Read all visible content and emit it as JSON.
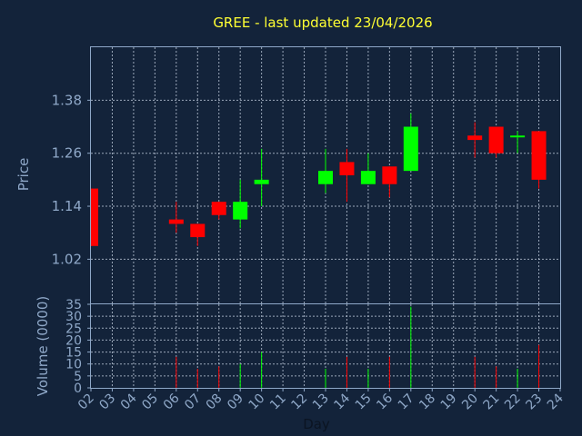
{
  "chart_data": [
    {
      "type": "candlestick",
      "title": "GREE - last updated 23/04/2026",
      "ylabel": "Price",
      "xlabel": "Day",
      "ylim": [
        0.92,
        1.5
      ],
      "yticks": [
        "1.02",
        "1.14",
        "1.26",
        "1.38"
      ],
      "ytick_values": [
        1.02,
        1.14,
        1.26,
        1.38
      ],
      "categories": [
        "02",
        "03",
        "04",
        "05",
        "06",
        "07",
        "08",
        "09",
        "10",
        "11",
        "12",
        "13",
        "14",
        "15",
        "16",
        "17",
        "18",
        "19",
        "20",
        "21",
        "22",
        "23",
        "24"
      ],
      "grid": true,
      "colors": {
        "up": "#00ff00",
        "down": "#ff0000",
        "title": "#ffff33",
        "axis": "#8fa8c8",
        "background": "#13233a"
      },
      "candles": [
        {
          "day": "02",
          "open": 1.18,
          "high": 1.18,
          "low": 1.05,
          "close": 1.05
        },
        {
          "day": "06",
          "open": 1.11,
          "high": 1.15,
          "low": 1.08,
          "close": 1.1
        },
        {
          "day": "07",
          "open": 1.1,
          "high": 1.1,
          "low": 1.05,
          "close": 1.07
        },
        {
          "day": "08",
          "open": 1.15,
          "high": 1.15,
          "low": 1.11,
          "close": 1.12
        },
        {
          "day": "09",
          "open": 1.11,
          "high": 1.2,
          "low": 1.09,
          "close": 1.15
        },
        {
          "day": "10",
          "open": 1.19,
          "high": 1.27,
          "low": 1.14,
          "close": 1.2
        },
        {
          "day": "13",
          "open": 1.19,
          "high": 1.27,
          "low": 1.17,
          "close": 1.22
        },
        {
          "day": "14",
          "open": 1.24,
          "high": 1.27,
          "low": 1.15,
          "close": 1.21
        },
        {
          "day": "15",
          "open": 1.19,
          "high": 1.26,
          "low": 1.19,
          "close": 1.22
        },
        {
          "day": "16",
          "open": 1.23,
          "high": 1.23,
          "low": 1.16,
          "close": 1.19
        },
        {
          "day": "17",
          "open": 1.22,
          "high": 1.35,
          "low": 1.22,
          "close": 1.32
        },
        {
          "day": "20",
          "open": 1.3,
          "high": 1.33,
          "low": 1.25,
          "close": 1.29
        },
        {
          "day": "21",
          "open": 1.32,
          "high": 1.32,
          "low": 1.25,
          "close": 1.26
        },
        {
          "day": "22",
          "open": 1.3,
          "high": 1.31,
          "low": 1.26,
          "close": 1.3
        },
        {
          "day": "23",
          "open": 1.31,
          "high": 1.31,
          "low": 1.18,
          "close": 1.2
        }
      ]
    },
    {
      "type": "bar",
      "ylabel": "Volume (0000)",
      "ylim": [
        0,
        35
      ],
      "yticks": [
        "0",
        "5",
        "10",
        "15",
        "20",
        "25",
        "30",
        "35"
      ],
      "ytick_values": [
        0,
        5,
        10,
        15,
        20,
        25,
        30,
        35
      ],
      "grid": true,
      "volumes": [
        {
          "day": "06",
          "value": 13,
          "direction": "down"
        },
        {
          "day": "07",
          "value": 8,
          "direction": "down"
        },
        {
          "day": "08",
          "value": 9,
          "direction": "down"
        },
        {
          "day": "09",
          "value": 10,
          "direction": "up"
        },
        {
          "day": "10",
          "value": 15,
          "direction": "up"
        },
        {
          "day": "13",
          "value": 8,
          "direction": "up"
        },
        {
          "day": "14",
          "value": 13,
          "direction": "down"
        },
        {
          "day": "15",
          "value": 8,
          "direction": "up"
        },
        {
          "day": "16",
          "value": 13,
          "direction": "down"
        },
        {
          "day": "17",
          "value": 34,
          "direction": "up"
        },
        {
          "day": "20",
          "value": 13,
          "direction": "down"
        },
        {
          "day": "21",
          "value": 9,
          "direction": "down"
        },
        {
          "day": "22",
          "value": 8,
          "direction": "up"
        },
        {
          "day": "23",
          "value": 18,
          "direction": "down"
        }
      ]
    }
  ]
}
